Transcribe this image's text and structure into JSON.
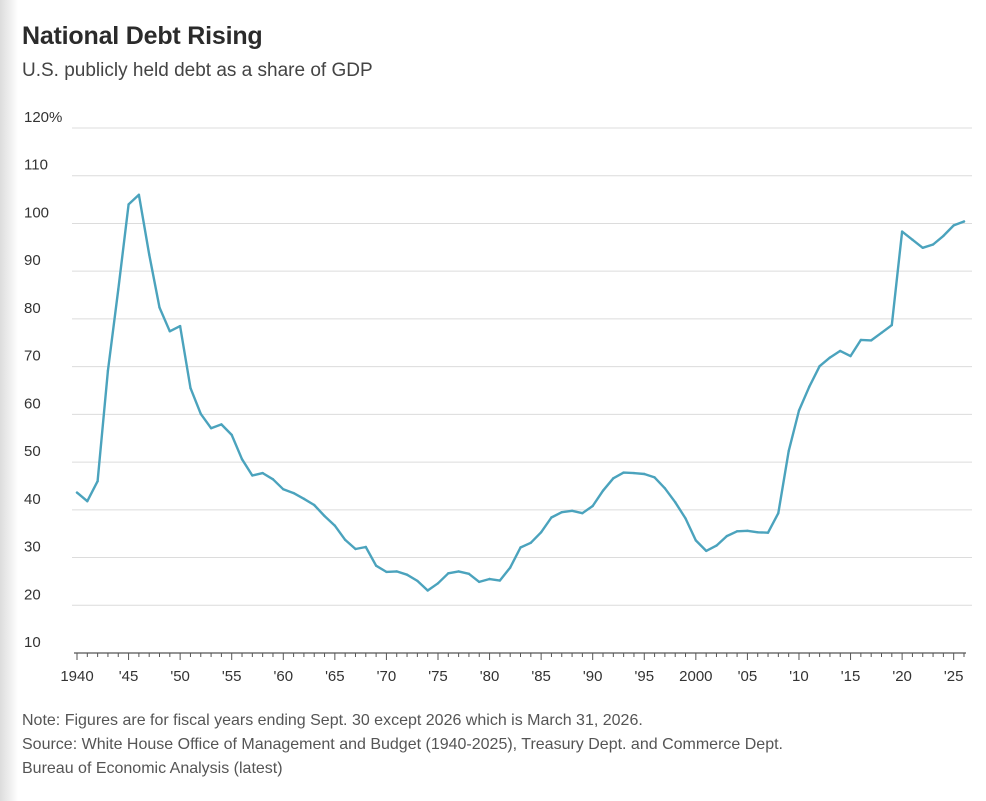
{
  "header": {
    "title": "National Debt Rising",
    "subtitle": "U.S. publicly held debt as a share of GDP"
  },
  "footer": {
    "note": "Note: Figures are for fiscal years ending Sept. 30 except 2026 which is March 31, 2026.",
    "source_line1": "Source: White House Office of Management and Budget (1940-2025), Treasury Dept. and Commerce Dept.",
    "source_line2": "Bureau of Economic Analysis (latest)"
  },
  "colors": {
    "line": "#4ba3bd",
    "grid": "#dcdcdc",
    "text": "#333333"
  },
  "chart_data": {
    "type": "line",
    "title": "National Debt Rising",
    "subtitle": "U.S. publicly held debt as a share of GDP",
    "xlabel": "",
    "ylabel": "",
    "xlim": [
      1940,
      2026
    ],
    "ylim": [
      10,
      120
    ],
    "y_ticks": [
      10,
      20,
      30,
      40,
      50,
      60,
      70,
      80,
      90,
      100,
      110,
      120
    ],
    "y_tick_labels": [
      "10",
      "20",
      "30",
      "40",
      "50",
      "60",
      "70",
      "80",
      "90",
      "100",
      "110",
      "120%"
    ],
    "x_ticks": [
      1940,
      1945,
      1950,
      1955,
      1960,
      1965,
      1970,
      1975,
      1980,
      1985,
      1990,
      1995,
      2000,
      2005,
      2010,
      2015,
      2020,
      2025
    ],
    "x_tick_labels": [
      "1940",
      "'45",
      "'50",
      "'55",
      "'60",
      "'65",
      "'70",
      "'75",
      "'80",
      "'85",
      "'90",
      "'95",
      "2000",
      "'05",
      "'10",
      "'15",
      "'20",
      "'25"
    ],
    "grid": true,
    "legend": "none",
    "series": [
      {
        "x": [
          1940,
          1941,
          1942,
          1943,
          1944,
          1945,
          1946,
          1947,
          1948,
          1949,
          1950,
          1951,
          1952,
          1953,
          1954,
          1955,
          1956,
          1957,
          1958,
          1959,
          1960,
          1961,
          1962,
          1963,
          1964,
          1965,
          1966,
          1967,
          1968,
          1969,
          1970,
          1971,
          1972,
          1973,
          1974,
          1975,
          1976,
          1977,
          1978,
          1979,
          1980,
          1981,
          1982,
          1983,
          1984,
          1985,
          1986,
          1987,
          1988,
          1989,
          1990,
          1991,
          1992,
          1993,
          1994,
          1995,
          1996,
          1997,
          1998,
          1999,
          2000,
          2001,
          2002,
          2003,
          2004,
          2005,
          2006,
          2007,
          2008,
          2009,
          2010,
          2011,
          2012,
          2013,
          2014,
          2015,
          2016,
          2017,
          2018,
          2019,
          2020,
          2021,
          2022,
          2023,
          2024,
          2025,
          2026
        ],
        "values": [
          43.6,
          41.8,
          46.0,
          69.1,
          86.2,
          104.0,
          106.0,
          93.5,
          82.4,
          77.4,
          78.5,
          65.5,
          60.1,
          57.1,
          57.9,
          55.7,
          50.6,
          47.2,
          47.7,
          46.4,
          44.3,
          43.5,
          42.3,
          41.0,
          38.7,
          36.7,
          33.7,
          31.8,
          32.2,
          28.3,
          27.0,
          27.1,
          26.4,
          25.1,
          23.1,
          24.6,
          26.7,
          27.1,
          26.6,
          24.9,
          25.5,
          25.2,
          27.9,
          32.1,
          33.1,
          35.3,
          38.4,
          39.5,
          39.8,
          39.3,
          40.8,
          44.0,
          46.6,
          47.8,
          47.7,
          47.5,
          46.8,
          44.5,
          41.6,
          38.2,
          33.6,
          31.4,
          32.5,
          34.5,
          35.5,
          35.6,
          35.3,
          35.2,
          39.3,
          52.3,
          60.8,
          65.8,
          70.1,
          71.9,
          73.3,
          72.2,
          75.6,
          75.5,
          77.1,
          78.7,
          98.3,
          96.6,
          94.9,
          95.6,
          97.4,
          99.6,
          100.4
        ]
      }
    ]
  }
}
